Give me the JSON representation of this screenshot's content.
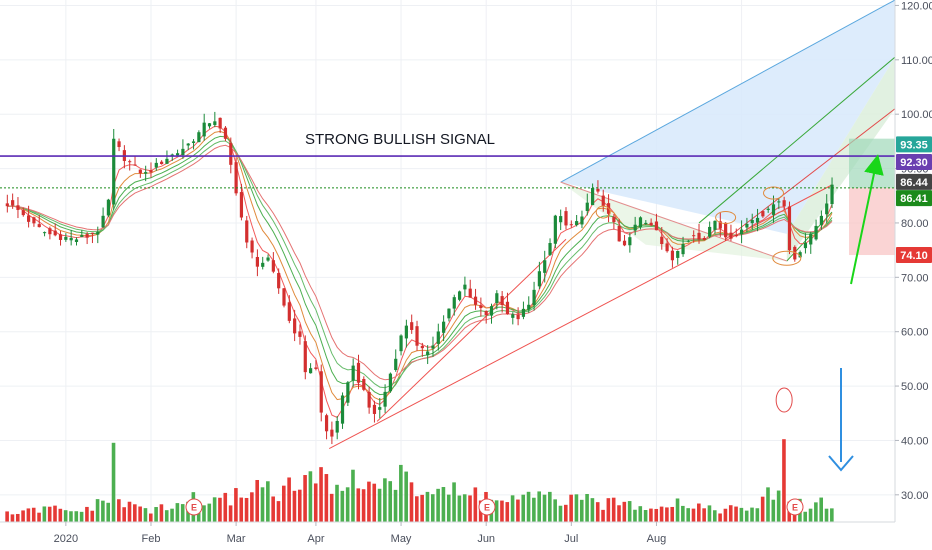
{
  "chart_data": {
    "type": "candlestick",
    "title": "",
    "annotation": "STRONG BULLISH SIGNAL",
    "y_axis": {
      "min": 25,
      "max": 121,
      "ticks": [
        "30.00",
        "40.00",
        "50.00",
        "60.00",
        "70.00",
        "80.00",
        "90.00",
        "100.00",
        "110.00",
        "120.00"
      ]
    },
    "x_axis": {
      "labels": [
        "2020",
        "Feb",
        "Mar",
        "Apr",
        "May",
        "Jun",
        "Jul",
        "Aug"
      ]
    },
    "price_tags": [
      {
        "value": 93.35,
        "label": "93.35",
        "color": "#26a69a"
      },
      {
        "value": 92.3,
        "label": "92.30",
        "color": "#6a3fb0"
      },
      {
        "value": 86.44,
        "label": "86.44",
        "color": "#444444"
      },
      {
        "value": 86.41,
        "label": "86.41",
        "color": "#1b8a1b"
      },
      {
        "value": 74.1,
        "label": "74.10",
        "color": "#e53935"
      }
    ],
    "horizontal_lines": [
      {
        "value": 92.3,
        "style": "solid",
        "color": "#5b2bb5"
      },
      {
        "value": 86.44,
        "style": "dotted",
        "color": "#1b8a1b"
      }
    ],
    "earnings_markers": [
      "E",
      "E",
      "E"
    ],
    "close_series": [
      {
        "d": 0,
        "c": 83.5
      },
      {
        "d": 5,
        "c": 82.0
      },
      {
        "d": 10,
        "c": 79.5
      },
      {
        "d": 15,
        "c": 78.0
      },
      {
        "d": 20,
        "c": 77.5
      },
      {
        "d": 25,
        "c": 77.0
      },
      {
        "d": 30,
        "c": 77.5
      },
      {
        "d": 35,
        "c": 79.0
      },
      {
        "d": 38,
        "c": 84.0
      },
      {
        "d": 40,
        "c": 95.0
      },
      {
        "d": 44,
        "c": 92.0
      },
      {
        "d": 48,
        "c": 90.0
      },
      {
        "d": 52,
        "c": 89.0
      },
      {
        "d": 56,
        "c": 90.5
      },
      {
        "d": 60,
        "c": 92.0
      },
      {
        "d": 64,
        "c": 93.0
      },
      {
        "d": 68,
        "c": 94.5
      },
      {
        "d": 72,
        "c": 96.5
      },
      {
        "d": 75,
        "c": 98.5
      },
      {
        "d": 78,
        "c": 99.0
      },
      {
        "d": 82,
        "c": 95.0
      },
      {
        "d": 86,
        "c": 86.0
      },
      {
        "d": 90,
        "c": 76.0
      },
      {
        "d": 94,
        "c": 72.5
      },
      {
        "d": 98,
        "c": 73.0
      },
      {
        "d": 102,
        "c": 68.0
      },
      {
        "d": 106,
        "c": 62.0
      },
      {
        "d": 110,
        "c": 58.5
      },
      {
        "d": 113,
        "c": 50.0
      },
      {
        "d": 115,
        "c": 57.0
      },
      {
        "d": 118,
        "c": 45.0
      },
      {
        "d": 121,
        "c": 40.0
      },
      {
        "d": 124,
        "c": 43.0
      },
      {
        "d": 127,
        "c": 50.0
      },
      {
        "d": 130,
        "c": 53.5
      },
      {
        "d": 133,
        "c": 50.0
      },
      {
        "d": 136,
        "c": 46.0
      },
      {
        "d": 139,
        "c": 44.5
      },
      {
        "d": 142,
        "c": 49.0
      },
      {
        "d": 145,
        "c": 54.0
      },
      {
        "d": 148,
        "c": 59.0
      },
      {
        "d": 151,
        "c": 62.5
      },
      {
        "d": 154,
        "c": 57.0
      },
      {
        "d": 157,
        "c": 56.0
      },
      {
        "d": 160,
        "c": 58.0
      },
      {
        "d": 164,
        "c": 62.0
      },
      {
        "d": 168,
        "c": 66.0
      },
      {
        "d": 172,
        "c": 68.5
      },
      {
        "d": 176,
        "c": 65.0
      },
      {
        "d": 180,
        "c": 63.5
      },
      {
        "d": 184,
        "c": 66.5
      },
      {
        "d": 188,
        "c": 63.0
      },
      {
        "d": 192,
        "c": 62.5
      },
      {
        "d": 196,
        "c": 65.0
      },
      {
        "d": 200,
        "c": 71.0
      },
      {
        "d": 204,
        "c": 76.5
      },
      {
        "d": 207,
        "c": 83.0
      },
      {
        "d": 210,
        "c": 79.0
      },
      {
        "d": 214,
        "c": 80.0
      },
      {
        "d": 218,
        "c": 83.5
      },
      {
        "d": 221,
        "c": 87.0
      },
      {
        "d": 224,
        "c": 83.0
      },
      {
        "d": 228,
        "c": 80.0
      },
      {
        "d": 231,
        "c": 74.0
      },
      {
        "d": 234,
        "c": 78.0
      },
      {
        "d": 238,
        "c": 80.5
      },
      {
        "d": 242,
        "c": 80.0
      },
      {
        "d": 246,
        "c": 76.0
      },
      {
        "d": 250,
        "c": 73.0
      },
      {
        "d": 254,
        "c": 76.0
      },
      {
        "d": 258,
        "c": 78.0
      },
      {
        "d": 262,
        "c": 77.0
      },
      {
        "d": 266,
        "c": 80.5
      },
      {
        "d": 270,
        "c": 78.0
      },
      {
        "d": 274,
        "c": 77.5
      },
      {
        "d": 278,
        "c": 80.0
      },
      {
        "d": 282,
        "c": 81.5
      },
      {
        "d": 286,
        "c": 82.0
      },
      {
        "d": 289,
        "c": 85.0
      },
      {
        "d": 292,
        "c": 83.0
      },
      {
        "d": 294,
        "c": 75.0
      },
      {
        "d": 296,
        "c": 73.5
      },
      {
        "d": 299,
        "c": 76.0
      },
      {
        "d": 302,
        "c": 77.5
      },
      {
        "d": 305,
        "c": 80.5
      },
      {
        "d": 308,
        "c": 84.0
      },
      {
        "d": 310,
        "c": 86.41
      }
    ],
    "volume_series": [
      {
        "d": 0,
        "v": 1.2
      },
      {
        "d": 8,
        "v": 1.5
      },
      {
        "d": 16,
        "v": 2.0
      },
      {
        "d": 24,
        "v": 1.4
      },
      {
        "d": 32,
        "v": 2.2
      },
      {
        "d": 38,
        "v": 3.0
      },
      {
        "d": 40,
        "v": 11.0
      },
      {
        "d": 46,
        "v": 2.5
      },
      {
        "d": 54,
        "v": 1.8
      },
      {
        "d": 62,
        "v": 2.0
      },
      {
        "d": 70,
        "v": 3.6
      },
      {
        "d": 78,
        "v": 2.7
      },
      {
        "d": 84,
        "v": 3.5
      },
      {
        "d": 90,
        "v": 4.8
      },
      {
        "d": 96,
        "v": 5.5
      },
      {
        "d": 102,
        "v": 4.5
      },
      {
        "d": 108,
        "v": 5.0
      },
      {
        "d": 114,
        "v": 6.4
      },
      {
        "d": 120,
        "v": 5.8
      },
      {
        "d": 126,
        "v": 6.0
      },
      {
        "d": 132,
        "v": 5.5
      },
      {
        "d": 138,
        "v": 6.5
      },
      {
        "d": 144,
        "v": 5.2
      },
      {
        "d": 150,
        "v": 6.6
      },
      {
        "d": 156,
        "v": 4.5
      },
      {
        "d": 162,
        "v": 5.0
      },
      {
        "d": 170,
        "v": 4.0
      },
      {
        "d": 178,
        "v": 4.2
      },
      {
        "d": 186,
        "v": 3.0
      },
      {
        "d": 194,
        "v": 3.4
      },
      {
        "d": 202,
        "v": 3.5
      },
      {
        "d": 210,
        "v": 3.2
      },
      {
        "d": 218,
        "v": 3.0
      },
      {
        "d": 226,
        "v": 2.6
      },
      {
        "d": 234,
        "v": 2.8
      },
      {
        "d": 242,
        "v": 2.4
      },
      {
        "d": 250,
        "v": 3.0
      },
      {
        "d": 258,
        "v": 2.5
      },
      {
        "d": 266,
        "v": 2.0
      },
      {
        "d": 274,
        "v": 1.8
      },
      {
        "d": 282,
        "v": 2.2
      },
      {
        "d": 288,
        "v": 4.5
      },
      {
        "d": 291,
        "v": 11.5
      },
      {
        "d": 296,
        "v": 2.8
      },
      {
        "d": 302,
        "v": 2.0
      },
      {
        "d": 306,
        "v": 3.0
      },
      {
        "d": 310,
        "v": 2.4
      }
    ]
  }
}
